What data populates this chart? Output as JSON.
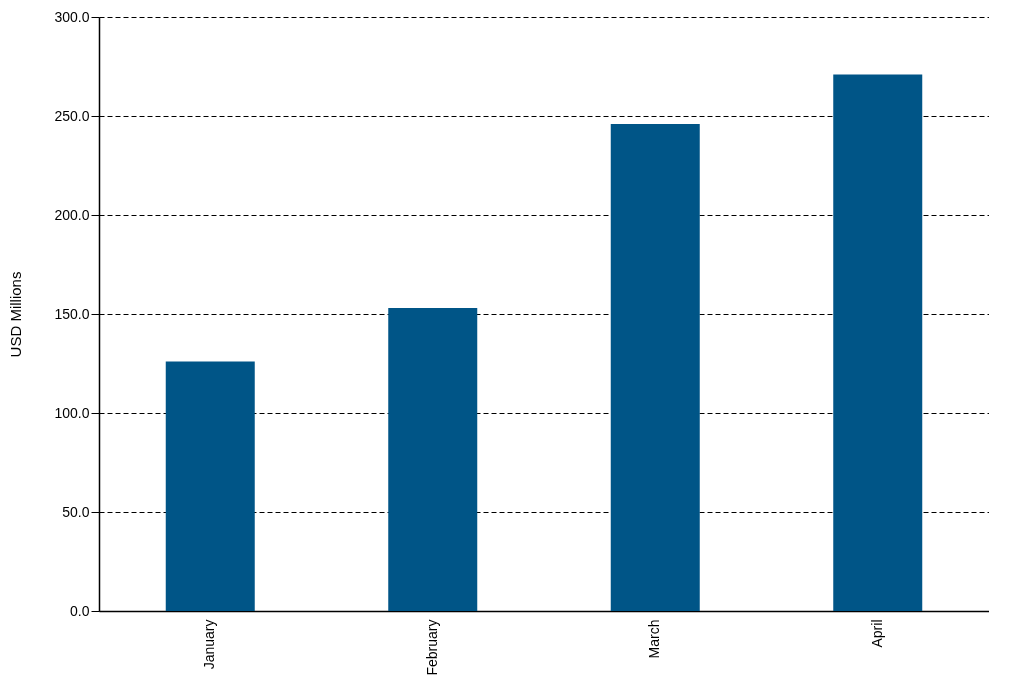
{
  "chart_data": {
    "type": "bar",
    "ylabel": "USD Millions",
    "categories": [
      "January",
      "February",
      "March",
      "April"
    ],
    "values": [
      126,
      153,
      246,
      271
    ],
    "color": "#005587",
    "ylim": [
      0,
      300
    ],
    "yticks": [
      {
        "value": 0,
        "label": "0.0"
      },
      {
        "value": 50,
        "label": "50.0"
      },
      {
        "value": 100,
        "label": "100.0"
      },
      {
        "value": 150,
        "label": "150.0"
      },
      {
        "value": 200,
        "label": "200.0"
      },
      {
        "value": 250,
        "label": "250.0"
      },
      {
        "value": 300,
        "label": "300.0"
      }
    ],
    "grid": "y"
  }
}
